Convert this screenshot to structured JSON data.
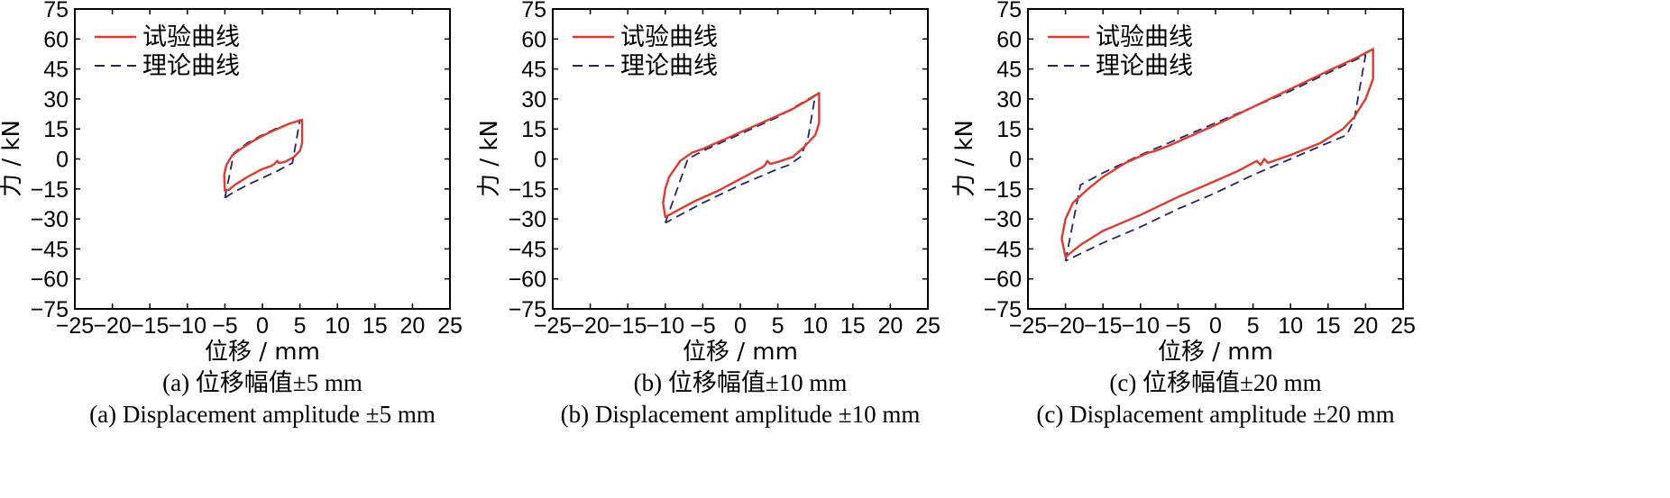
{
  "chart_data": [
    {
      "type": "line",
      "title": "",
      "xlabel": "位移 / mm",
      "ylabel": "力 / kN",
      "xlim": [
        -25,
        25
      ],
      "ylim": [
        -75,
        75
      ],
      "xticks": [
        "−25",
        "−20",
        "−15",
        "−10",
        "−5",
        "0",
        "5",
        "10",
        "15",
        "20",
        "25"
      ],
      "yticks": [
        "75",
        "60",
        "45",
        "30",
        "15",
        "0",
        "−15",
        "−30",
        "−45",
        "−60",
        "−75"
      ],
      "legend_position": "top-left",
      "caption_cn": "(a) 位移幅值±5 mm",
      "caption_en": "(a) Displacement amplitude ±5 mm",
      "series": [
        {
          "name": "试验曲线",
          "color": "#e03a2f",
          "style": "solid",
          "x": [
            -4.8,
            -4.0,
            -2.5,
            -1.0,
            0.5,
            2.0,
            3.5,
            4.8,
            5.3,
            5.3,
            5.0,
            4.2,
            3.0,
            2.2,
            2.0,
            1.6,
            1.2,
            0.0,
            -2.0,
            -3.5,
            -4.5,
            -5.0,
            -5.1,
            -4.8
          ],
          "y": [
            -3.0,
            2.0,
            6.0,
            9.5,
            12.5,
            15.0,
            17.5,
            19.0,
            19.5,
            8.0,
            4.0,
            1.0,
            -1.5,
            -2.0,
            -1.0,
            -2.5,
            -3.5,
            -5.0,
            -9.0,
            -12.5,
            -15.5,
            -16.0,
            -8.0,
            -3.0
          ]
        },
        {
          "name": "理论曲线",
          "color": "#22256a",
          "style": "dashed",
          "x": [
            -5.0,
            -3.8,
            -2.0,
            0.0,
            2.0,
            4.0,
            5.0,
            4.0,
            2.0,
            0.0,
            -2.0,
            -4.0,
            -5.0
          ],
          "y": [
            -19.5,
            3.0,
            8.0,
            12.0,
            15.5,
            18.0,
            19.5,
            -2.0,
            -6.0,
            -9.5,
            -13.0,
            -17.0,
            -19.5
          ]
        }
      ]
    },
    {
      "type": "line",
      "title": "",
      "xlabel": "位移 / mm",
      "ylabel": "力 / kN",
      "xlim": [
        -25,
        25
      ],
      "ylim": [
        -75,
        75
      ],
      "xticks": [
        "−25",
        "−20",
        "−15",
        "−10",
        "−5",
        "0",
        "5",
        "10",
        "15",
        "20",
        "25"
      ],
      "yticks": [
        "75",
        "60",
        "45",
        "30",
        "15",
        "0",
        "−15",
        "−30",
        "−45",
        "−60",
        "−75"
      ],
      "legend_position": "top-left",
      "caption_cn": "(b) 位移幅值±10 mm",
      "caption_en": "(b) Displacement amplitude ±10 mm",
      "series": [
        {
          "name": "试验曲线",
          "color": "#e03a2f",
          "style": "solid",
          "x": [
            -10.0,
            -9.5,
            -8.0,
            -6.5,
            -5.0,
            -2.0,
            1.0,
            4.0,
            7.0,
            9.5,
            10.5,
            10.5,
            10.0,
            8.5,
            7.0,
            5.0,
            4.0,
            3.6,
            3.3,
            3.0,
            0.0,
            -3.0,
            -6.0,
            -8.5,
            -10.0,
            -10.3,
            -10.0
          ],
          "y": [
            -15.0,
            -9.0,
            -1.0,
            3.0,
            5.0,
            10.0,
            15.0,
            20.0,
            25.0,
            30.5,
            33.0,
            18.0,
            12.0,
            6.0,
            1.0,
            -1.5,
            -2.5,
            -1.0,
            -3.0,
            -4.0,
            -10.0,
            -16.0,
            -21.0,
            -26.0,
            -29.0,
            -22.0,
            -15.0
          ]
        },
        {
          "name": "理论曲线",
          "color": "#22256a",
          "style": "dashed",
          "x": [
            -10.0,
            -7.0,
            -5.0,
            0.0,
            5.0,
            10.0,
            9.0,
            8.0,
            6.5,
            5.0,
            0.0,
            -5.0,
            -10.0
          ],
          "y": [
            -32.0,
            0.0,
            4.0,
            12.5,
            21.0,
            32.0,
            10.0,
            1.0,
            -3.0,
            -5.0,
            -13.0,
            -22.0,
            -32.0
          ]
        }
      ]
    },
    {
      "type": "line",
      "title": "",
      "xlabel": "位移 / mm",
      "ylabel": "力 / kN",
      "xlim": [
        -25,
        25
      ],
      "ylim": [
        -75,
        75
      ],
      "xticks": [
        "−25",
        "−20",
        "−15",
        "−10",
        "−5",
        "0",
        "5",
        "10",
        "15",
        "20",
        "25"
      ],
      "yticks": [
        "75",
        "60",
        "45",
        "30",
        "15",
        "0",
        "−15",
        "−30",
        "−45",
        "−60",
        "−75"
      ],
      "legend_position": "top-left",
      "caption_cn": "(c) 位移幅值±20 mm",
      "caption_en": "(c) Displacement amplitude ±20 mm",
      "series": [
        {
          "name": "试验曲线",
          "color": "#e03a2f",
          "style": "solid",
          "x": [
            -20.0,
            -19.0,
            -17.0,
            -15.0,
            -12.0,
            -9.0,
            -8.0,
            -6.0,
            -3.0,
            0.0,
            5.0,
            10.0,
            15.0,
            19.0,
            21.0,
            21.0,
            20.0,
            18.5,
            17.0,
            14.0,
            10.0,
            7.0,
            6.5,
            6.0,
            5.5,
            3.0,
            0.0,
            -5.0,
            -10.0,
            -15.0,
            -18.0,
            -20.0,
            -20.5,
            -20.0
          ],
          "y": [
            -30.0,
            -22.0,
            -15.0,
            -9.0,
            -2.0,
            3.0,
            4.0,
            7.0,
            12.0,
            17.0,
            26.0,
            35.0,
            44.0,
            51.0,
            55.0,
            40.0,
            30.0,
            21.0,
            15.0,
            8.0,
            2.0,
            -2.0,
            0.0,
            -3.0,
            -1.0,
            -6.0,
            -11.0,
            -19.0,
            -28.0,
            -36.0,
            -43.0,
            -49.0,
            -40.0,
            -30.0
          ]
        },
        {
          "name": "理论曲线",
          "color": "#22256a",
          "style": "dashed",
          "x": [
            -20.0,
            -18.0,
            -15.0,
            -10.0,
            -5.0,
            0.0,
            5.0,
            10.0,
            15.0,
            20.0,
            18.5,
            17.5,
            15.0,
            10.0,
            5.0,
            0.0,
            -5.0,
            -10.0,
            -15.0,
            -20.0
          ],
          "y": [
            -51.0,
            -13.0,
            -7.0,
            2.0,
            10.0,
            18.0,
            26.0,
            34.0,
            43.0,
            52.0,
            20.0,
            12.0,
            8.0,
            0.0,
            -8.0,
            -17.0,
            -25.0,
            -34.0,
            -42.0,
            -51.0
          ]
        }
      ]
    }
  ]
}
